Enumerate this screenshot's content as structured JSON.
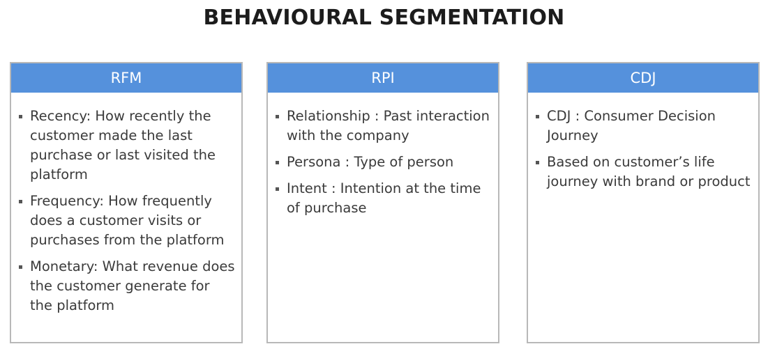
{
  "title": "BEHAVIOURAL SEGMENTATION",
  "colors": {
    "header_bg": "#5591dc",
    "header_text": "#ffffff",
    "border": "#b8b8b8",
    "body_text": "#3a3a3a"
  },
  "cards": [
    {
      "header": "RFM",
      "items": [
        "Recency: How recently the customer made the last purchase or last visited the platform",
        "Frequency: How frequently does a customer visits or purchases from the platform",
        "Monetary: What revenue does the customer generate for the platform"
      ]
    },
    {
      "header": "RPI",
      "items": [
        "Relationship : Past interaction with the company",
        "Persona : Type of person",
        "Intent : Intention at the time of purchase"
      ]
    },
    {
      "header": "CDJ",
      "items": [
        "CDJ : Consumer Decision Journey",
        "Based on customer’s life journey with brand or product"
      ]
    }
  ]
}
